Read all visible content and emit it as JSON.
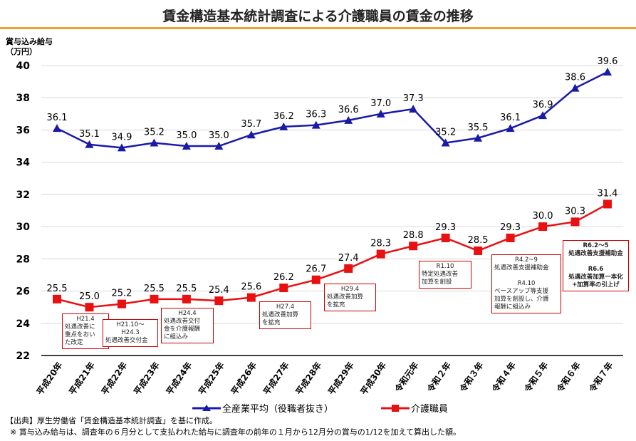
{
  "chart_data": {
    "type": "line",
    "title": "賃金構造基本統計調査による介護職員の賃金の推移",
    "ylabel": "賞与込み給与\n（万円）",
    "ylim": [
      22,
      40
    ],
    "yticks": [
      22,
      24,
      26,
      28,
      30,
      32,
      34,
      36,
      38,
      40
    ],
    "grid": true,
    "legend_position": "bottom",
    "categories": [
      "平成20年",
      "平成21年",
      "平成22年",
      "平成23年",
      "平成24年",
      "平成25年",
      "平成26年",
      "平成27年",
      "平成28年",
      "平成29年",
      "平成30年",
      "令和元年",
      "令和２年",
      "令和３年",
      "令和４年",
      "令和５年",
      "令和６年",
      "令和７年"
    ],
    "series": [
      {
        "name": "全産業平均（役職者抜き）",
        "color": "#1a1aa8",
        "marker": "triangle",
        "values": [
          36.1,
          35.1,
          34.9,
          35.2,
          35.0,
          35.0,
          35.7,
          36.2,
          36.3,
          36.6,
          37.0,
          37.3,
          35.2,
          35.5,
          36.1,
          36.9,
          38.6,
          39.6
        ],
        "labels": [
          "36.1",
          "35.1",
          "34.9",
          "35.2",
          "35.0",
          "35.0",
          "35.7",
          "36.2",
          "36.3",
          "36.6",
          "37.0",
          "37.3",
          "35.2",
          "35.5",
          "36.1",
          "36.9",
          "38.6",
          "39.6"
        ]
      },
      {
        "name": "介護職員",
        "color": "#e81010",
        "marker": "square",
        "values": [
          25.5,
          25.0,
          25.2,
          25.5,
          25.5,
          25.4,
          25.6,
          26.2,
          26.7,
          27.4,
          28.3,
          28.8,
          29.3,
          28.5,
          29.3,
          30.0,
          30.3,
          31.4
        ],
        "labels": [
          "25.5",
          "25.0",
          "25.2",
          "25.5",
          "25.5",
          "25.4",
          "25.6",
          "26.2",
          "26.7",
          "27.4",
          "28.3",
          "28.8",
          "29.3",
          "28.5",
          "29.3",
          "30.0",
          "30.3",
          "31.4"
        ]
      }
    ],
    "annotations": [
      {
        "lines": [
          "H21.4",
          "処遇改善に",
          "重点をおい",
          "た改定"
        ]
      },
      {
        "lines": [
          "H21.10～",
          "H24.3",
          "処遇改善交付金"
        ]
      },
      {
        "lines": [
          "H24.4",
          "処遇改善交付",
          "金を介護報酬",
          "に組込み"
        ]
      },
      {
        "lines": [
          "H27.4",
          "処遇改善加算",
          "を拡充"
        ]
      },
      {
        "lines": [
          "H29.4",
          "処遇改善加算",
          "を拡充"
        ]
      },
      {
        "lines": [
          "R1.10",
          "特定処遇改善",
          "加算を創設"
        ]
      },
      {
        "lines": [
          "R4.2~9",
          "処遇改善支援補助金",
          "",
          "R4.10",
          "ベースアップ等支援",
          "加算を創設し、介護",
          "報酬に組込み"
        ]
      },
      {
        "lines": [
          "R6.2～5",
          "処遇改善支援補助金",
          "",
          "R6.6",
          "処遇改善加算一本化",
          "+加算率の引上げ"
        ]
      }
    ]
  },
  "source": "【出典】厚生労働省「賃金構造基本統計調査」を基に作成。",
  "footnote": "※  賞与込み給与は、調査年の６月分として支払われた給与に調査年の前年の１月から12月分の賞与の1/12を加えて算出した額。"
}
